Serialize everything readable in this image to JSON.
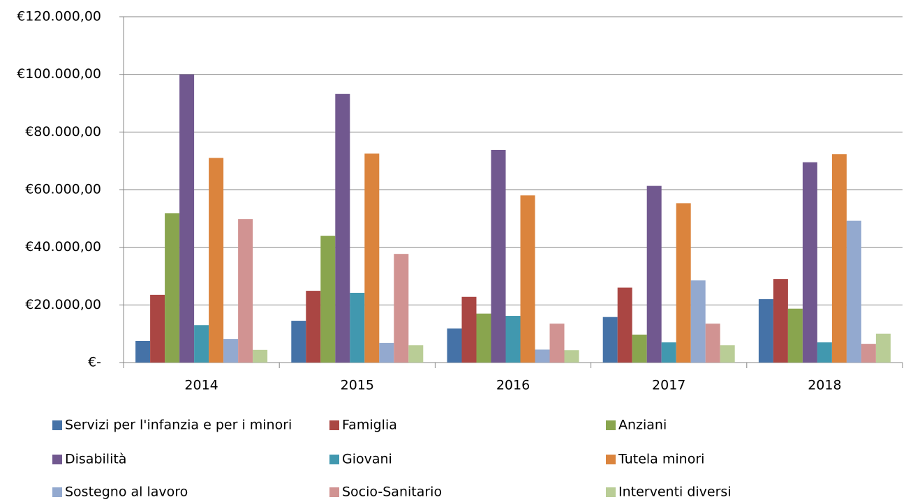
{
  "chart_data": {
    "type": "bar",
    "categories": [
      "2014",
      "2015",
      "2016",
      "2017",
      "2018"
    ],
    "series": [
      {
        "name": "Servizi per l'infanzia e per i minori",
        "color": "#4572a7",
        "values": [
          7500,
          14500,
          11800,
          15800,
          22000
        ]
      },
      {
        "name": "Famiglia",
        "color": "#aa4643",
        "values": [
          23500,
          24900,
          22800,
          26000,
          29000
        ]
      },
      {
        "name": "Anziani",
        "color": "#89a54e",
        "values": [
          51800,
          44000,
          17000,
          9700,
          18700
        ]
      },
      {
        "name": "Disabilità",
        "color": "#71588f",
        "values": [
          100000,
          93200,
          73800,
          61300,
          69500
        ]
      },
      {
        "name": "Giovani",
        "color": "#4198af",
        "values": [
          13000,
          24200,
          16200,
          7000,
          7000
        ]
      },
      {
        "name": "Tutela minori",
        "color": "#db843d",
        "values": [
          71000,
          72500,
          58000,
          55300,
          72300
        ]
      },
      {
        "name": "Sostegno al lavoro",
        "color": "#93a9cf",
        "values": [
          8200,
          6800,
          4500,
          28500,
          49200
        ]
      },
      {
        "name": "Socio-Sanitario",
        "color": "#d19392",
        "values": [
          49800,
          37700,
          13500,
          13500,
          6500
        ]
      },
      {
        "name": "Interventi diversi",
        "color": "#b9cd96",
        "values": [
          4400,
          6000,
          4300,
          6000,
          10000
        ]
      }
    ],
    "ylim": [
      0,
      120000
    ],
    "yticks": [
      {
        "value": 0,
        "label": "€-"
      },
      {
        "value": 20000,
        "label": "€20.000,00"
      },
      {
        "value": 40000,
        "label": "€40.000,00"
      },
      {
        "value": 60000,
        "label": "€60.000,00"
      },
      {
        "value": 80000,
        "label": "€80.000,00"
      },
      {
        "value": 100000,
        "label": "€100.000,00"
      },
      {
        "value": 120000,
        "label": "€120.000,00"
      }
    ],
    "grid": true
  }
}
